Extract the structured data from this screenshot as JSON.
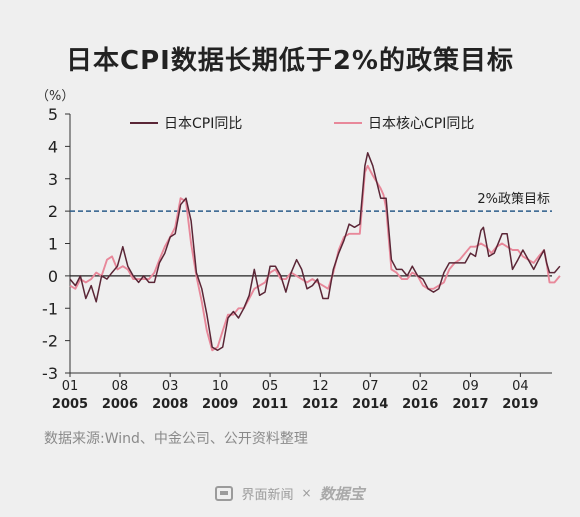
{
  "title": "日本CPI数据长期低于2%的政策目标",
  "source": "数据来源:Wind、中金公司、公开资料整理",
  "footer": {
    "brand1": "界面新闻",
    "separator": "×",
    "brand2": "数据宝"
  },
  "chart_data": {
    "type": "line",
    "y_unit": "（%）",
    "ylim": [
      -3,
      5
    ],
    "yticks": [
      -3,
      -2,
      -1,
      0,
      1,
      2,
      3,
      4,
      5
    ],
    "x_start": 2005.0,
    "x_end": 2020.25,
    "x_ticks": [
      {
        "pos": 2005.0,
        "month": "01",
        "year": "2005"
      },
      {
        "pos": 2006.58,
        "month": "08",
        "year": "2006"
      },
      {
        "pos": 2008.17,
        "month": "03",
        "year": "2008"
      },
      {
        "pos": 2009.75,
        "month": "10",
        "year": "2009"
      },
      {
        "pos": 2011.33,
        "month": "05",
        "year": "2011"
      },
      {
        "pos": 2012.92,
        "month": "12",
        "year": "2012"
      },
      {
        "pos": 2014.5,
        "month": "07",
        "year": "2014"
      },
      {
        "pos": 2016.08,
        "month": "02",
        "year": "2016"
      },
      {
        "pos": 2017.67,
        "month": "09",
        "year": "2017"
      },
      {
        "pos": 2019.25,
        "month": "04",
        "year": "2019"
      }
    ],
    "reference_line": {
      "value": 2,
      "label": "2%政策目标",
      "color": "#2b5c8a"
    },
    "legend_placement": "top",
    "series": [
      {
        "name": "日本CPI同比",
        "color": "#5a2636",
        "points": [
          [
            2005.0,
            -0.1
          ],
          [
            2005.17,
            -0.3
          ],
          [
            2005.33,
            0.0
          ],
          [
            2005.5,
            -0.7
          ],
          [
            2005.67,
            -0.3
          ],
          [
            2005.83,
            -0.8
          ],
          [
            2006.0,
            0.0
          ],
          [
            2006.17,
            -0.1
          ],
          [
            2006.33,
            0.1
          ],
          [
            2006.5,
            0.3
          ],
          [
            2006.67,
            0.9
          ],
          [
            2006.83,
            0.3
          ],
          [
            2007.0,
            0.0
          ],
          [
            2007.17,
            -0.2
          ],
          [
            2007.33,
            0.0
          ],
          [
            2007.5,
            -0.2
          ],
          [
            2007.67,
            -0.2
          ],
          [
            2007.83,
            0.4
          ],
          [
            2008.0,
            0.7
          ],
          [
            2008.17,
            1.2
          ],
          [
            2008.33,
            1.3
          ],
          [
            2008.5,
            2.2
          ],
          [
            2008.67,
            2.4
          ],
          [
            2008.83,
            1.7
          ],
          [
            2009.0,
            0.1
          ],
          [
            2009.17,
            -0.4
          ],
          [
            2009.33,
            -1.2
          ],
          [
            2009.5,
            -2.2
          ],
          [
            2009.67,
            -2.3
          ],
          [
            2009.83,
            -2.2
          ],
          [
            2010.0,
            -1.3
          ],
          [
            2010.17,
            -1.1
          ],
          [
            2010.33,
            -1.3
          ],
          [
            2010.5,
            -1.0
          ],
          [
            2010.67,
            -0.6
          ],
          [
            2010.83,
            0.2
          ],
          [
            2011.0,
            -0.6
          ],
          [
            2011.17,
            -0.5
          ],
          [
            2011.33,
            0.3
          ],
          [
            2011.5,
            0.3
          ],
          [
            2011.67,
            0.0
          ],
          [
            2011.83,
            -0.5
          ],
          [
            2012.0,
            0.1
          ],
          [
            2012.17,
            0.5
          ],
          [
            2012.33,
            0.2
          ],
          [
            2012.5,
            -0.4
          ],
          [
            2012.67,
            -0.3
          ],
          [
            2012.83,
            -0.1
          ],
          [
            2013.0,
            -0.7
          ],
          [
            2013.17,
            -0.7
          ],
          [
            2013.33,
            0.2
          ],
          [
            2013.5,
            0.7
          ],
          [
            2013.67,
            1.1
          ],
          [
            2013.83,
            1.6
          ],
          [
            2014.0,
            1.5
          ],
          [
            2014.17,
            1.6
          ],
          [
            2014.33,
            3.4
          ],
          [
            2014.42,
            3.8
          ],
          [
            2014.58,
            3.4
          ],
          [
            2014.83,
            2.4
          ],
          [
            2014.92,
            2.4
          ],
          [
            2015.0,
            2.4
          ],
          [
            2015.17,
            0.5
          ],
          [
            2015.33,
            0.2
          ],
          [
            2015.5,
            0.2
          ],
          [
            2015.67,
            0.0
          ],
          [
            2015.83,
            0.3
          ],
          [
            2016.0,
            0.0
          ],
          [
            2016.17,
            -0.1
          ],
          [
            2016.33,
            -0.4
          ],
          [
            2016.5,
            -0.5
          ],
          [
            2016.67,
            -0.4
          ],
          [
            2016.83,
            0.1
          ],
          [
            2017.0,
            0.4
          ],
          [
            2017.17,
            0.4
          ],
          [
            2017.33,
            0.4
          ],
          [
            2017.5,
            0.4
          ],
          [
            2017.67,
            0.7
          ],
          [
            2017.83,
            0.6
          ],
          [
            2018.0,
            1.4
          ],
          [
            2018.08,
            1.5
          ],
          [
            2018.25,
            0.6
          ],
          [
            2018.42,
            0.7
          ],
          [
            2018.67,
            1.3
          ],
          [
            2018.83,
            1.3
          ],
          [
            2019.0,
            0.2
          ],
          [
            2019.17,
            0.5
          ],
          [
            2019.33,
            0.8
          ],
          [
            2019.5,
            0.5
          ],
          [
            2019.67,
            0.2
          ],
          [
            2019.83,
            0.5
          ],
          [
            2020.0,
            0.8
          ],
          [
            2020.08,
            0.4
          ],
          [
            2020.17,
            0.1
          ],
          [
            2020.33,
            0.1
          ],
          [
            2020.5,
            0.3
          ]
        ]
      },
      {
        "name": "日本核心CPI同比",
        "color": "#e8889a",
        "points": [
          [
            2005.0,
            -0.3
          ],
          [
            2005.17,
            -0.4
          ],
          [
            2005.33,
            -0.1
          ],
          [
            2005.5,
            -0.2
          ],
          [
            2005.67,
            -0.1
          ],
          [
            2005.83,
            0.1
          ],
          [
            2006.0,
            0.0
          ],
          [
            2006.17,
            0.5
          ],
          [
            2006.33,
            0.6
          ],
          [
            2006.5,
            0.2
          ],
          [
            2006.67,
            0.3
          ],
          [
            2006.83,
            0.2
          ],
          [
            2007.0,
            -0.1
          ],
          [
            2007.17,
            -0.1
          ],
          [
            2007.33,
            -0.1
          ],
          [
            2007.5,
            -0.1
          ],
          [
            2007.67,
            0.1
          ],
          [
            2007.83,
            0.5
          ],
          [
            2008.0,
            0.9
          ],
          [
            2008.17,
            1.2
          ],
          [
            2008.33,
            1.5
          ],
          [
            2008.5,
            2.4
          ],
          [
            2008.67,
            2.3
          ],
          [
            2008.83,
            1.0
          ],
          [
            2009.0,
            0.0
          ],
          [
            2009.17,
            -0.8
          ],
          [
            2009.33,
            -1.7
          ],
          [
            2009.5,
            -2.3
          ],
          [
            2009.67,
            -2.2
          ],
          [
            2009.83,
            -1.7
          ],
          [
            2010.0,
            -1.2
          ],
          [
            2010.17,
            -1.2
          ],
          [
            2010.33,
            -1.0
          ],
          [
            2010.5,
            -1.0
          ],
          [
            2010.67,
            -0.7
          ],
          [
            2010.83,
            -0.4
          ],
          [
            2011.0,
            -0.3
          ],
          [
            2011.17,
            -0.2
          ],
          [
            2011.33,
            0.1
          ],
          [
            2011.5,
            0.2
          ],
          [
            2011.67,
            -0.1
          ],
          [
            2011.83,
            -0.1
          ],
          [
            2012.0,
            0.1
          ],
          [
            2012.17,
            0.0
          ],
          [
            2012.33,
            -0.1
          ],
          [
            2012.5,
            -0.2
          ],
          [
            2012.67,
            -0.1
          ],
          [
            2012.83,
            -0.2
          ],
          [
            2013.0,
            -0.3
          ],
          [
            2013.17,
            -0.4
          ],
          [
            2013.33,
            0.1
          ],
          [
            2013.5,
            0.8
          ],
          [
            2013.67,
            1.2
          ],
          [
            2013.83,
            1.3
          ],
          [
            2014.0,
            1.3
          ],
          [
            2014.17,
            1.3
          ],
          [
            2014.33,
            3.2
          ],
          [
            2014.42,
            3.4
          ],
          [
            2014.58,
            3.1
          ],
          [
            2014.83,
            2.7
          ],
          [
            2014.92,
            2.5
          ],
          [
            2015.0,
            2.1
          ],
          [
            2015.17,
            0.2
          ],
          [
            2015.33,
            0.1
          ],
          [
            2015.5,
            -0.1
          ],
          [
            2015.67,
            -0.1
          ],
          [
            2015.83,
            0.1
          ],
          [
            2016.0,
            0.0
          ],
          [
            2016.17,
            -0.3
          ],
          [
            2016.33,
            -0.4
          ],
          [
            2016.5,
            -0.4
          ],
          [
            2016.67,
            -0.3
          ],
          [
            2016.83,
            -0.2
          ],
          [
            2017.0,
            0.2
          ],
          [
            2017.17,
            0.4
          ],
          [
            2017.33,
            0.5
          ],
          [
            2017.5,
            0.7
          ],
          [
            2017.67,
            0.9
          ],
          [
            2017.83,
            0.9
          ],
          [
            2018.0,
            1.0
          ],
          [
            2018.17,
            0.9
          ],
          [
            2018.33,
            0.7
          ],
          [
            2018.5,
            0.9
          ],
          [
            2018.67,
            1.0
          ],
          [
            2018.83,
            0.9
          ],
          [
            2019.0,
            0.8
          ],
          [
            2019.17,
            0.8
          ],
          [
            2019.33,
            0.6
          ],
          [
            2019.5,
            0.5
          ],
          [
            2019.67,
            0.4
          ],
          [
            2019.83,
            0.6
          ],
          [
            2020.0,
            0.8
          ],
          [
            2020.08,
            0.4
          ],
          [
            2020.17,
            -0.2
          ],
          [
            2020.33,
            -0.2
          ],
          [
            2020.5,
            0.0
          ]
        ]
      }
    ]
  }
}
